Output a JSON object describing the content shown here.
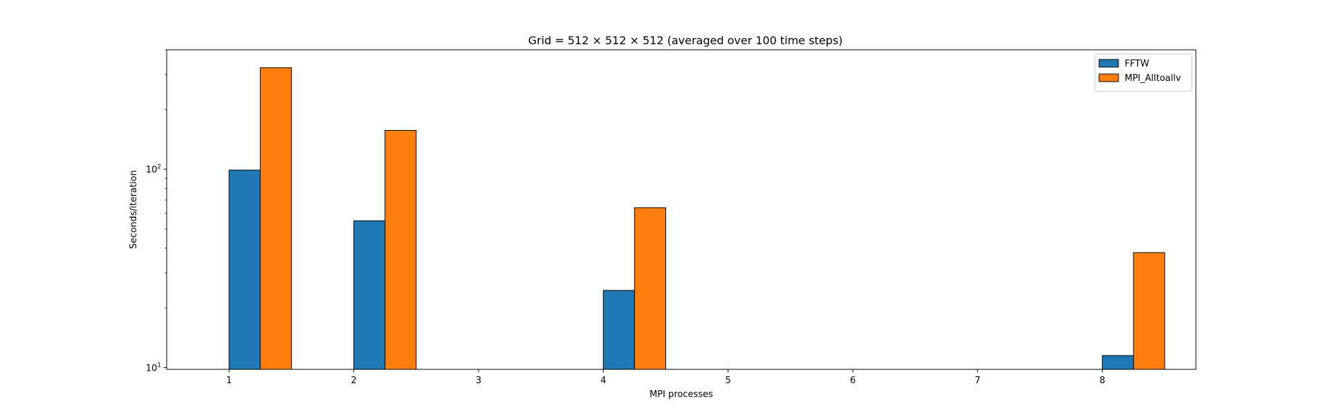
{
  "chart_data": {
    "type": "bar",
    "title": "Grid = 512 × 512 × 512 (averaged over 100 time steps)",
    "xlabel": "MPI processes",
    "ylabel": "Seconds/iteration",
    "yscale": "log",
    "x_ticks": [
      1,
      2,
      3,
      4,
      5,
      6,
      7,
      8
    ],
    "categories": [
      1,
      2,
      4,
      8
    ],
    "xlim": [
      0.5,
      8.75
    ],
    "ylim": [
      9.8,
      400
    ],
    "y_major_ticks": [
      {
        "value": 10,
        "base": "10",
        "exp": "1"
      },
      {
        "value": 100,
        "base": "10",
        "exp": "2"
      }
    ],
    "grid": false,
    "legend_position": "top-right",
    "series": [
      {
        "name": "FFTW",
        "color": "#1f77b4",
        "values": [
          99,
          55,
          24.5,
          11.5
        ]
      },
      {
        "name": "MPI_Alltoallv",
        "color": "#ff7f0e",
        "values": [
          325,
          157,
          64,
          38
        ]
      }
    ]
  }
}
